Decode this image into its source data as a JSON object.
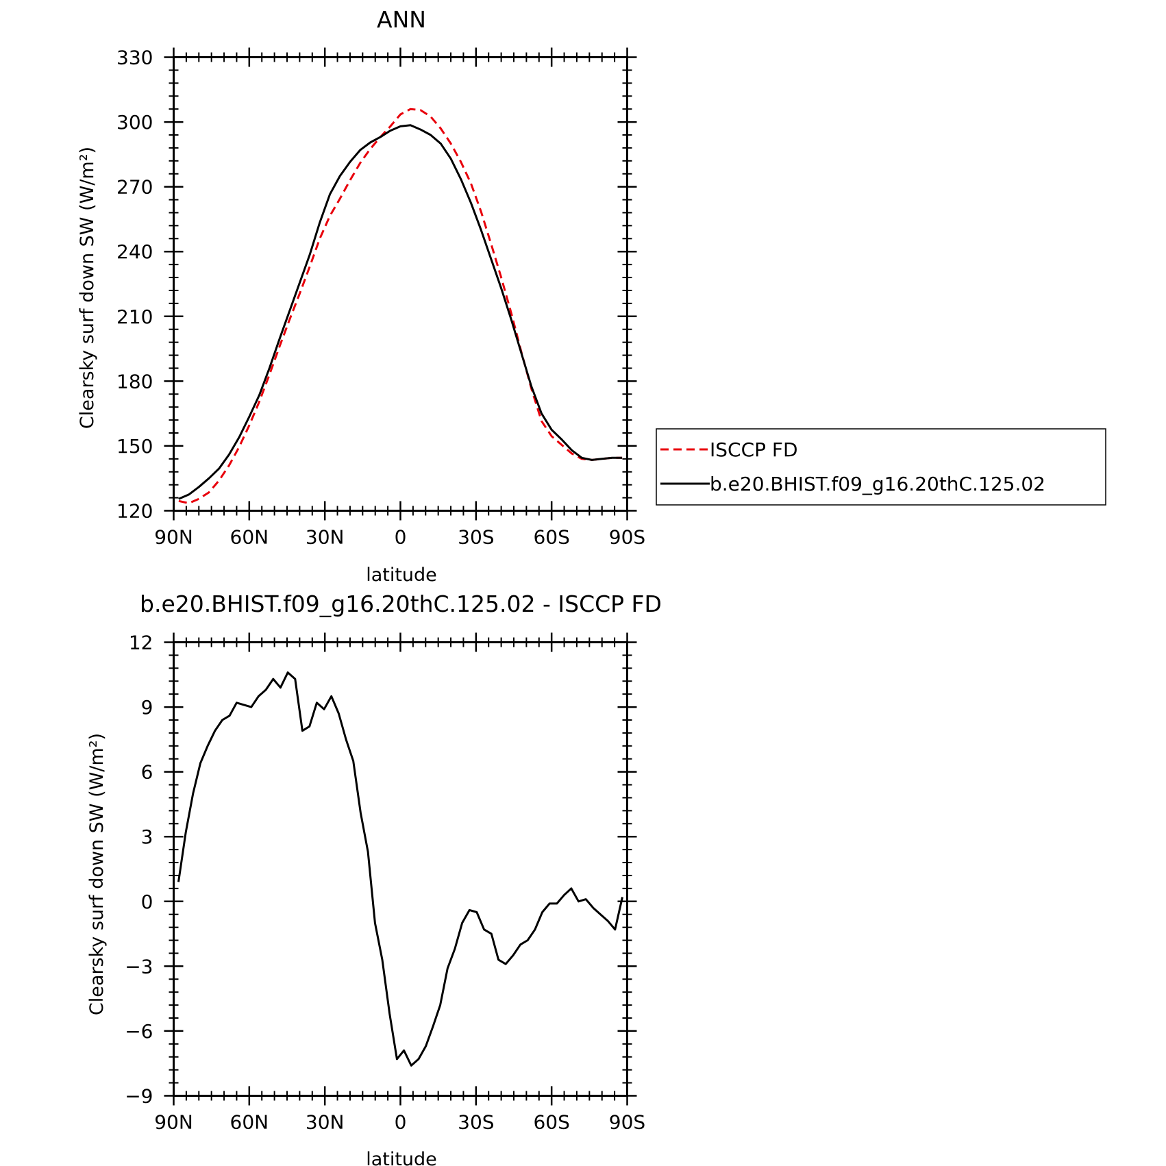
{
  "chart_data": [
    {
      "type": "line",
      "title": "ANN",
      "xlabel": "latitude",
      "ylabel": "Clearsky surf down SW (W/m²)",
      "xlim": [
        -90,
        90
      ],
      "ylim": [
        120,
        330
      ],
      "x_ticks": [
        {
          "value": -90,
          "label": "90N"
        },
        {
          "value": -60,
          "label": "60N"
        },
        {
          "value": -30,
          "label": "30N"
        },
        {
          "value": 0,
          "label": "0"
        },
        {
          "value": 30,
          "label": "30S"
        },
        {
          "value": 60,
          "label": "60S"
        },
        {
          "value": 90,
          "label": "90S"
        }
      ],
      "y_ticks": [
        120,
        150,
        180,
        210,
        240,
        270,
        300,
        330
      ],
      "legend_position": "right",
      "series": [
        {
          "name": "ISCCP FD",
          "color": "#e8000b",
          "dash": "dashed",
          "x": [
            -88,
            -84,
            -80,
            -76,
            -72,
            -68,
            -64,
            -60,
            -56,
            -52,
            -48,
            -44,
            -40,
            -36,
            -32,
            -28,
            -24,
            -20,
            -16,
            -12,
            -8,
            -4,
            0,
            4,
            8,
            12,
            16,
            20,
            24,
            28,
            32,
            36,
            40,
            44,
            48,
            52,
            56,
            60,
            64,
            68,
            72,
            76,
            80,
            84,
            88
          ],
          "y": [
            124.5,
            123.5,
            125.5,
            128.5,
            134,
            141,
            149.5,
            159.5,
            170.5,
            183,
            196,
            208.5,
            220.5,
            233,
            246,
            256.5,
            264.5,
            273,
            281,
            287.5,
            293,
            298,
            303.5,
            306,
            305.5,
            302.5,
            297,
            290,
            281.5,
            271.5,
            258.5,
            243.5,
            228,
            211.5,
            193.5,
            176.5,
            161.5,
            154.5,
            150.5,
            146.5,
            144,
            143.5,
            144,
            144.5,
            144.5
          ]
        },
        {
          "name": "b.e20.BHIST.f09_g16.20thC.125.02",
          "color": "#000000",
          "dash": "solid",
          "x": [
            -88,
            -84,
            -80,
            -76,
            -72,
            -68,
            -64,
            -60,
            -56,
            -52,
            -48,
            -44,
            -40,
            -36,
            -32,
            -28,
            -24,
            -20,
            -16,
            -12,
            -8,
            -4,
            0,
            4,
            8,
            12,
            16,
            20,
            24,
            28,
            32,
            36,
            40,
            44,
            48,
            52,
            56,
            60,
            64,
            68,
            72,
            76,
            80,
            84,
            88
          ],
          "y": [
            125.5,
            127.5,
            131,
            135,
            139.5,
            146,
            154,
            163.5,
            173.5,
            186,
            199.5,
            212.5,
            225.5,
            238.5,
            253.5,
            266.5,
            275,
            281.5,
            287,
            290.5,
            293,
            296,
            298,
            298.5,
            296.5,
            294,
            290,
            283,
            273.5,
            262.5,
            250,
            236.5,
            223,
            208.5,
            193,
            177.5,
            165,
            157.5,
            153,
            148,
            144.5,
            143.5,
            144,
            144.5,
            144.5
          ]
        }
      ]
    },
    {
      "type": "line",
      "title": "b.e20.BHIST.f09_g16.20thC.125.02 - ISCCP FD",
      "xlabel": "latitude",
      "ylabel": "Clearsky surf down SW (W/m²)",
      "xlim": [
        -90,
        90
      ],
      "ylim": [
        -9,
        12
      ],
      "x_ticks": [
        {
          "value": -90,
          "label": "90N"
        },
        {
          "value": -60,
          "label": "60N"
        },
        {
          "value": -30,
          "label": "30N"
        },
        {
          "value": 0,
          "label": "0"
        },
        {
          "value": 30,
          "label": "30S"
        },
        {
          "value": 60,
          "label": "60S"
        },
        {
          "value": 90,
          "label": "90S"
        }
      ],
      "y_ticks": [
        -9,
        -6,
        -3,
        0,
        3,
        6,
        9,
        12
      ],
      "series": [
        {
          "color": "#000000",
          "dash": "solid",
          "x": [
            -88.1,
            -85.2,
            -82.3,
            -79.4,
            -76.5,
            -73.6,
            -70.7,
            -67.8,
            -65,
            -62.1,
            -59.2,
            -56.3,
            -53.4,
            -50.5,
            -47.6,
            -44.7,
            -41.8,
            -38.9,
            -36.1,
            -33.2,
            -30.3,
            -27.4,
            -24.5,
            -21.6,
            -18.7,
            -15.8,
            -12.9,
            -10.1,
            -7.2,
            -4.3,
            -1.4,
            1.4,
            4.3,
            7.2,
            10.1,
            12.9,
            15.8,
            18.7,
            21.6,
            24.5,
            27.4,
            30.3,
            33.2,
            36.1,
            38.9,
            41.8,
            44.7,
            47.6,
            50.5,
            53.4,
            56.3,
            59.2,
            62.1,
            65,
            67.8,
            70.7,
            73.6,
            76.5,
            79.4,
            82.3,
            85.2,
            88.1
          ],
          "y": [
            0.9,
            3.2,
            5.0,
            6.4,
            7.2,
            7.9,
            8.4,
            8.6,
            9.2,
            9.1,
            9.0,
            9.5,
            9.8,
            10.3,
            9.9,
            10.6,
            10.3,
            7.9,
            8.1,
            9.2,
            8.9,
            9.5,
            8.7,
            7.5,
            6.5,
            4.1,
            2.3,
            -1.0,
            -2.7,
            -5.2,
            -7.3,
            -6.9,
            -7.6,
            -7.3,
            -6.7,
            -5.8,
            -4.8,
            -3.1,
            -2.2,
            -1.0,
            -0.4,
            -0.5,
            -1.3,
            -1.5,
            -2.7,
            -2.9,
            -2.5,
            -2.0,
            -1.8,
            -1.3,
            -0.5,
            -0.1,
            -0.1,
            0.3,
            0.6,
            0.0,
            0.1,
            -0.3,
            -0.6,
            -0.9,
            -1.3,
            0.2
          ]
        }
      ]
    }
  ]
}
